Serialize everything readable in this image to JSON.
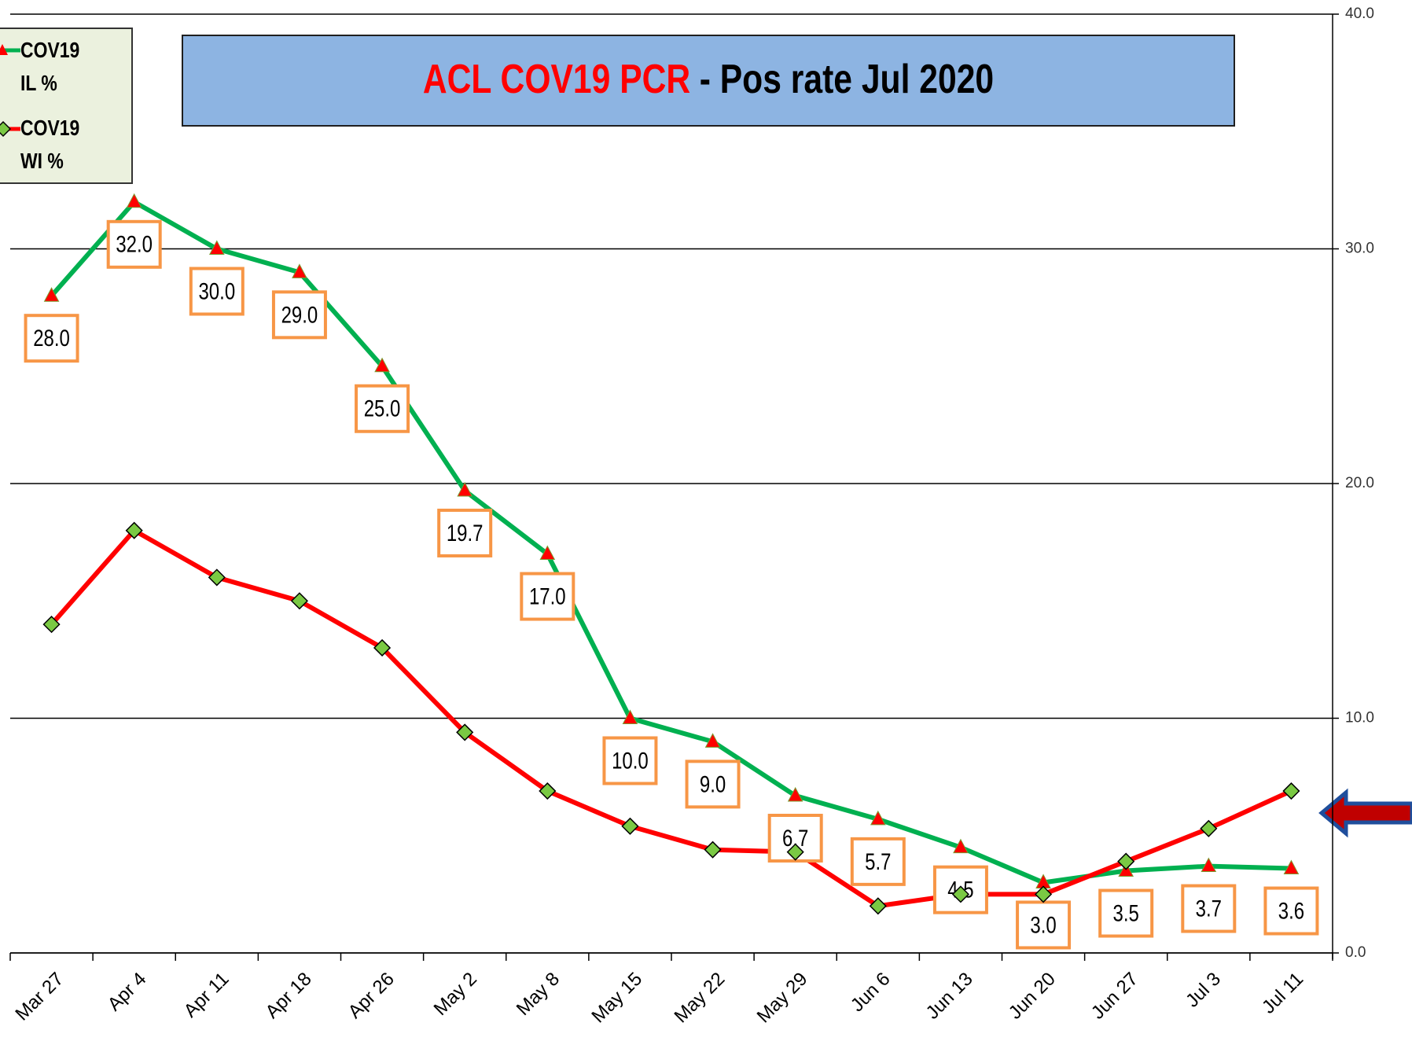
{
  "chart_data": {
    "type": "line",
    "title": {
      "highlight": "ACL COV19 PCR",
      "rest": "-  Pos rate Jul 2020"
    },
    "categories": [
      "Mar 27",
      "Apr 4",
      "Apr 11",
      "Apr 18",
      "Apr 26",
      "May 2",
      "May 8",
      "May 15",
      "May 22",
      "May 29",
      "Jun 6",
      "Jun 13",
      "Jun 20",
      "Jun 27",
      "Jul 3",
      "Jul 11"
    ],
    "series": [
      {
        "name": "COV19 IL %",
        "color": "#00b050",
        "marker_color": "#ff0000",
        "marker": "triangle",
        "values": [
          28.0,
          32.0,
          30.0,
          29.0,
          25.0,
          19.7,
          17.0,
          10.0,
          9.0,
          6.7,
          5.7,
          4.5,
          3.0,
          3.5,
          3.7,
          3.6
        ],
        "value_labels": [
          "28.0",
          "32.0",
          "30.0",
          "29.0",
          "25.0",
          "19.7",
          "17.0",
          "10.0",
          "9.0",
          "6.7",
          "5.7",
          "4.5",
          "3.0",
          "3.5",
          "3.7",
          "3.6"
        ]
      },
      {
        "name": "COV19 WI %",
        "color": "#ff0000",
        "marker_color": "#7ac943",
        "marker": "diamond",
        "values": [
          14.0,
          18.0,
          16.0,
          15.0,
          13.0,
          9.4,
          6.9,
          5.4,
          4.4,
          4.3,
          2.0,
          2.5,
          2.5,
          3.9,
          5.3,
          6.9
        ]
      }
    ],
    "ylim": [
      0,
      40
    ],
    "yticks": [
      {
        "value": 0,
        "label": "0.0"
      },
      {
        "value": 10,
        "label": "10.0"
      },
      {
        "value": 20,
        "label": "20.0"
      },
      {
        "value": 30,
        "label": "30.0"
      },
      {
        "value": 40,
        "label": "40.0"
      }
    ],
    "grid": true
  }
}
